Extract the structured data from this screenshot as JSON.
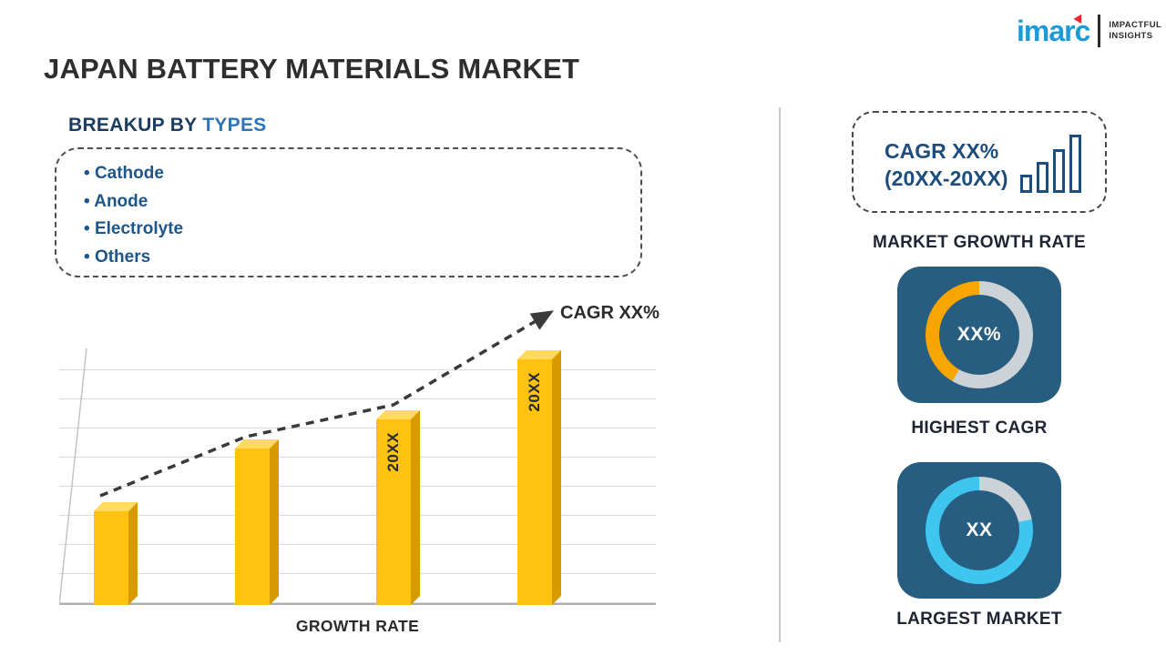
{
  "page": {
    "title": "JAPAN BATTERY MATERIALS MARKET"
  },
  "logo": {
    "brand": "imarc",
    "tagline_1": "IMPACTFUL",
    "tagline_2": "INSIGHTS"
  },
  "breakup": {
    "heading_prefix": "BREAKUP BY",
    "heading_accent": "TYPES",
    "items": [
      "Cathode",
      "Anode",
      "Electrolyte",
      "Others"
    ]
  },
  "chart_data": {
    "type": "bar",
    "categories": [
      "",
      "",
      "20XX",
      "20XX"
    ],
    "values": [
      36,
      60,
      71,
      94
    ],
    "ylim": [
      0,
      100
    ],
    "title": "",
    "xlabel": "GROWTH RATE",
    "ylabel": "",
    "annotation": "CAGR XX%",
    "grid": "horizontal",
    "legend": "none",
    "bar_color": "#FFC20E",
    "trend": "dashed ascending arrow"
  },
  "sidebar": {
    "growth_box": {
      "line1": "CAGR XX%",
      "line2": "(20XX-20XX)"
    },
    "market_growth_label": "MARKET GROWTH RATE",
    "highest_cagr": {
      "value": "XX%",
      "label": "HIGHEST CAGR",
      "ring": {
        "accent": "#F7A600",
        "track": "#CDD2D6",
        "track_to_deg": 210
      }
    },
    "largest_market": {
      "value": "XX",
      "label": "LARGEST MARKET",
      "ring": {
        "accent": "#3EC6F0",
        "track": "#CDD2D6",
        "track_to_deg": 78
      }
    }
  },
  "colors": {
    "navy_tile": "#275D80",
    "accent_blue": "#2E75B6",
    "heading_navy": "#1C3C60",
    "item_navy": "#1D5688",
    "bar_gold": "#FFC20E",
    "divider": "#C9C9C9"
  }
}
